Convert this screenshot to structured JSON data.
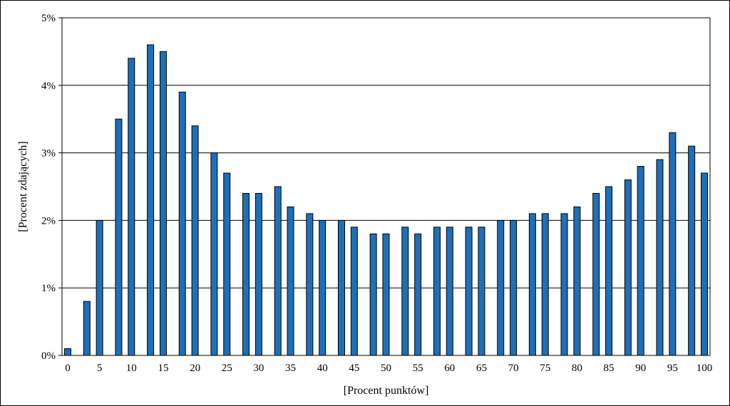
{
  "chart_data": {
    "type": "bar",
    "xlabel": "[Procent punktów]",
    "ylabel": "[Procent zdających]",
    "ylim": [
      0,
      5
    ],
    "y_unit_suffix": "%",
    "y_ticks": [
      0,
      1,
      2,
      3,
      4,
      5
    ],
    "x_tick_labels": [
      "0",
      "5",
      "10",
      "15",
      "20",
      "25",
      "30",
      "35",
      "40",
      "45",
      "50",
      "55",
      "60",
      "65",
      "70",
      "75",
      "80",
      "85",
      "90",
      "95",
      "100"
    ],
    "grid": true,
    "bar_color": "#1f6fb8",
    "x": [
      0,
      3,
      5,
      8,
      10,
      13,
      15,
      18,
      20,
      23,
      25,
      28,
      30,
      33,
      35,
      38,
      40,
      43,
      45,
      48,
      50,
      53,
      55,
      58,
      60,
      63,
      65,
      68,
      70,
      73,
      75,
      78,
      80,
      83,
      85,
      88,
      90,
      93,
      95,
      98,
      100
    ],
    "values": [
      0.1,
      0.8,
      2.0,
      3.5,
      4.4,
      4.6,
      4.5,
      3.9,
      3.4,
      3.0,
      2.7,
      2.4,
      2.4,
      2.5,
      2.2,
      2.1,
      2.0,
      2.0,
      1.9,
      1.8,
      1.8,
      1.9,
      1.8,
      1.9,
      1.9,
      1.9,
      1.9,
      2.0,
      2.0,
      2.1,
      2.1,
      2.1,
      2.2,
      2.4,
      2.5,
      2.6,
      2.8,
      2.9,
      3.3,
      3.1,
      2.7
    ]
  }
}
